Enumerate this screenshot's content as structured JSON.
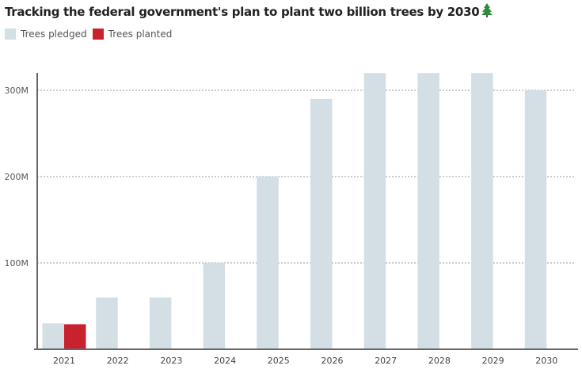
{
  "title": "Tracking the federal government's plan to plant two billion trees by 2030",
  "title_icon": "evergreen-tree-icon",
  "legend": [
    {
      "label": "Trees pledged",
      "color": "#d3dfe5"
    },
    {
      "label": "Trees planted",
      "color": "#c8232c"
    }
  ],
  "chart_data": {
    "type": "bar",
    "categories": [
      "2021",
      "2022",
      "2023",
      "2024",
      "2025",
      "2026",
      "2027",
      "2028",
      "2029",
      "2030"
    ],
    "series": [
      {
        "name": "Trees pledged",
        "color": "#d3dfe5",
        "values": [
          30000000,
          60000000,
          60000000,
          100000000,
          200000000,
          290000000,
          320000000,
          320000000,
          320000000,
          300000000
        ]
      },
      {
        "name": "Trees planted",
        "color": "#c8232c",
        "values": [
          29000000,
          null,
          null,
          null,
          null,
          null,
          null,
          null,
          null,
          null
        ]
      }
    ],
    "yticks": [
      100000000,
      200000000,
      300000000
    ],
    "ytick_labels": [
      "100M",
      "200M",
      "300M"
    ],
    "ylim": [
      0,
      320000000
    ],
    "grid": true,
    "legend_position": "top-left",
    "xlabel": "",
    "ylabel": ""
  }
}
